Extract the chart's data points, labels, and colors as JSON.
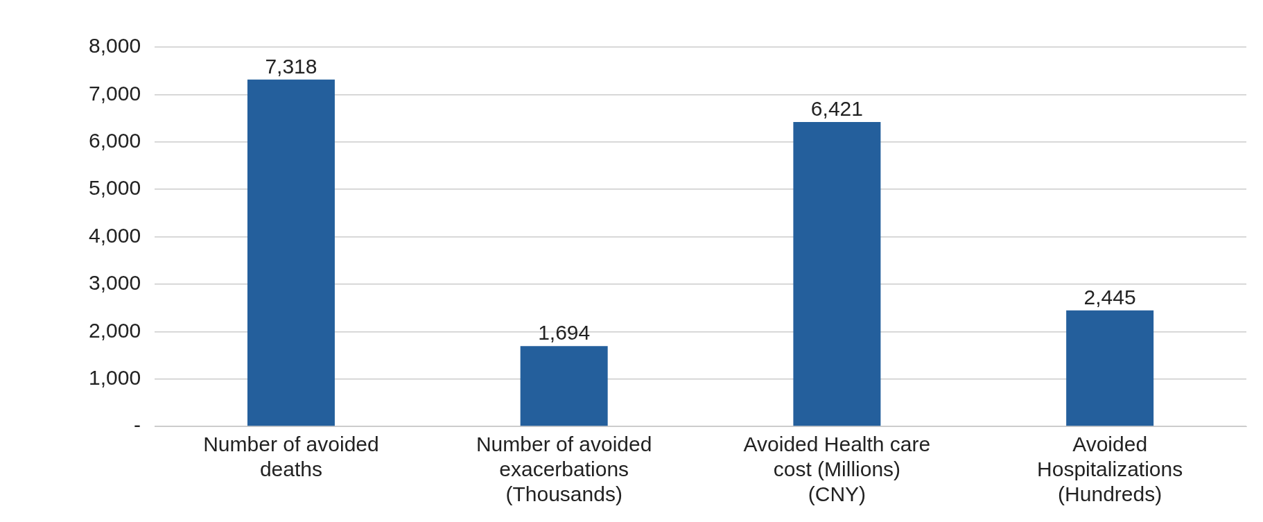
{
  "chart_data": {
    "type": "bar",
    "categories": [
      "Number of avoided deaths",
      "Number of avoided exacerbations (Thousands)",
      "Avoided Health care cost (Millions) (CNY)",
      "Avoided Hospitalizations (Hundreds)"
    ],
    "values": [
      7318,
      1694,
      6421,
      2445
    ],
    "color": "#245f9c",
    "value_labels": [
      "7,318",
      "1,694",
      "6,421",
      "2,445"
    ],
    "ylim": [
      0,
      8000
    ],
    "yticks": [
      {
        "value": 0,
        "label": "-"
      },
      {
        "value": 1000,
        "label": "1,000"
      },
      {
        "value": 2000,
        "label": "2,000"
      },
      {
        "value": 3000,
        "label": "3,000"
      },
      {
        "value": 4000,
        "label": "4,000"
      },
      {
        "value": 5000,
        "label": "5,000"
      },
      {
        "value": 6000,
        "label": "6,000"
      },
      {
        "value": 7000,
        "label": "7,000"
      },
      {
        "value": 8000,
        "label": "8,000"
      }
    ],
    "grid": "y",
    "legend": false
  }
}
